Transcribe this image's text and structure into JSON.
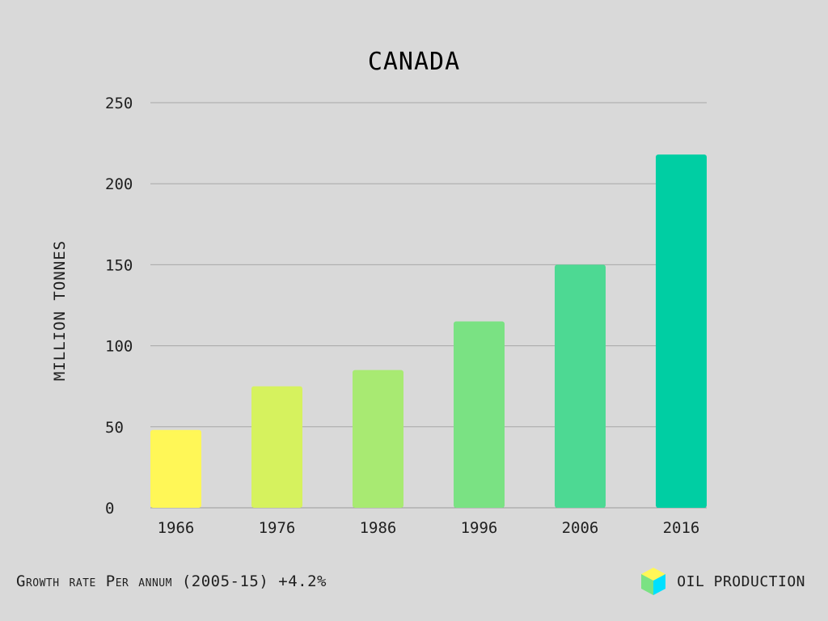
{
  "chart_data": {
    "type": "bar",
    "title": "CANADA",
    "xlabel": "",
    "ylabel": "MILLION TONNES",
    "categories": [
      "1966",
      "1976",
      "1986",
      "1996",
      "2006",
      "2016"
    ],
    "values": [
      48,
      75,
      85,
      115,
      150,
      218
    ],
    "colors": [
      "#fff757",
      "#d6f25e",
      "#a8ea72",
      "#7ae283",
      "#4dd993",
      "#00cea3"
    ],
    "ylim": [
      0,
      250
    ],
    "yticks": [
      0,
      50,
      100,
      150,
      200,
      250
    ],
    "grid": true
  },
  "footer": {
    "note": "Growth rate Per annum (2005-15) +4.2%",
    "brand_label": "OIL PRODUCTION",
    "brand_icon": "cube-icon",
    "brand_icon_colors": [
      "#fff757",
      "#7ae283",
      "#00e0ff"
    ]
  }
}
